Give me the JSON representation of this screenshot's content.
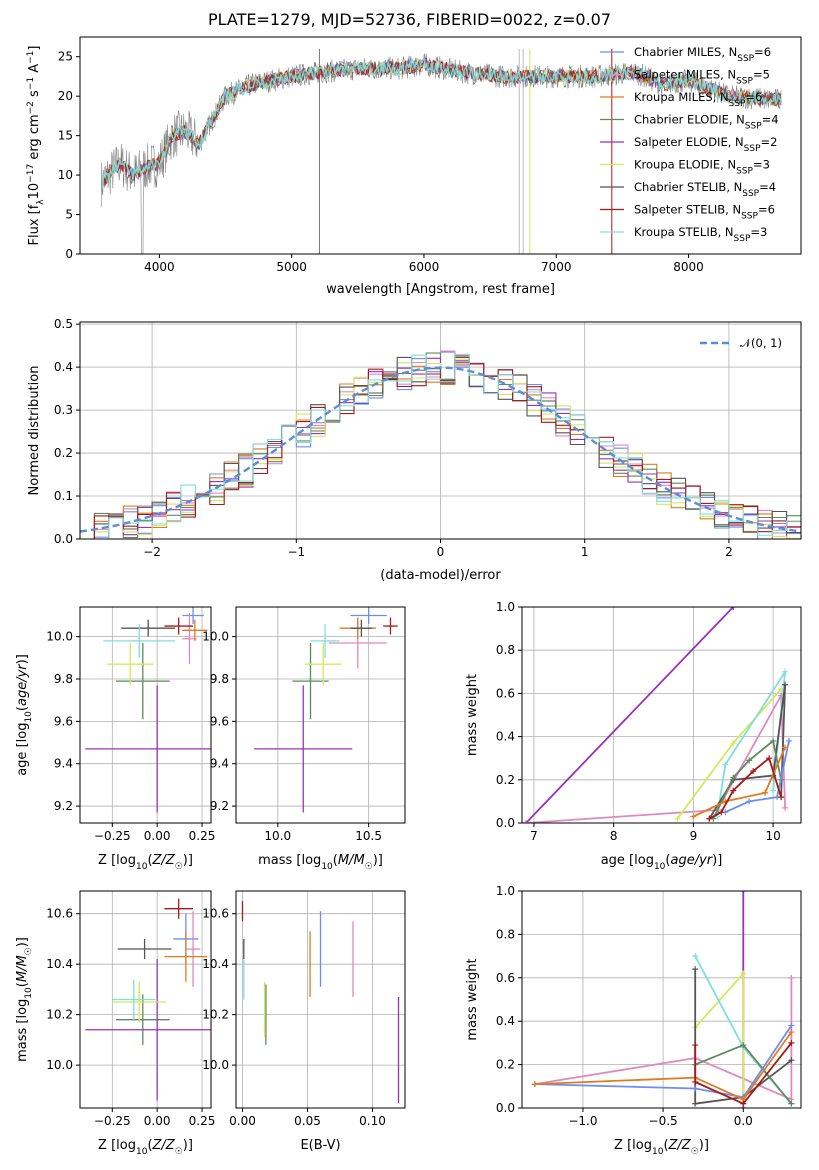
{
  "title": "PLATE=1279, MJD=52736, FIBERID=0022, z=0.07",
  "colors": {
    "chabrier_miles": "#6b8ef0",
    "salpeter_miles": "#e089c0",
    "kroupa_miles": "#e07b20",
    "chabrier_elodie": "#5f8a5f",
    "salpeter_elodie": "#9b30b8",
    "kroupa_elodie": "#d4e85a",
    "chabrier_stelib": "#555555",
    "salpeter_stelib": "#aa1818",
    "kroupa_stelib": "#80dede",
    "gauss": "#5b8ed6",
    "data": "#808080"
  },
  "chart_data": [
    {
      "id": "spectrum",
      "type": "line",
      "xlabel": "wavelength [Angstrom, rest frame]",
      "ylabel": "Flux [fλ10⁻¹⁷ erg cm⁻² s⁻¹ A⁻¹]",
      "xlim": [
        3400,
        8850
      ],
      "ylim": [
        0,
        27.5
      ],
      "xticks": [
        4000,
        5000,
        6000,
        7000,
        8000
      ],
      "yticks": [
        0,
        5,
        10,
        15,
        20,
        25
      ],
      "legend_position": "top-right",
      "legend": [
        "Chabrier MILES, N_SSP=6",
        "Salpeter MILES, N_SSP=5",
        "Kroupa MILES, N_SSP=6",
        "Chabrier ELODIE, N_SSP=4",
        "Salpeter ELODIE, N_SSP=2",
        "Kroupa ELODIE, N_SSP=3",
        "Chabrier STELIB, N_SSP=4",
        "Salpeter STELIB, N_SSP=6",
        "Kroupa STELIB, N_SSP=3"
      ],
      "series_keys": [
        "chabrier_miles",
        "salpeter_miles",
        "kroupa_miles",
        "chabrier_elodie",
        "salpeter_elodie",
        "kroupa_elodie",
        "chabrier_stelib",
        "salpeter_stelib",
        "kroupa_stelib"
      ],
      "continuum": {
        "x": [
          3560,
          3700,
          3800,
          3900,
          4000,
          4100,
          4200,
          4300,
          4400,
          4500,
          4700,
          5000,
          5200,
          5500,
          5800,
          6000,
          6300,
          6600,
          7000,
          7300,
          7600,
          7800,
          8000,
          8300,
          8700
        ],
        "y": [
          9,
          11.5,
          10,
          11,
          11.5,
          15,
          15.5,
          14,
          17,
          20,
          21.5,
          22.5,
          23,
          23.5,
          23.5,
          24,
          23,
          22.5,
          22.5,
          22.5,
          23,
          21.5,
          22,
          20,
          19.5
        ]
      }
    },
    {
      "id": "residuals",
      "type": "histogram",
      "xlabel": "(data-model)/error",
      "ylabel": "Normed distribution",
      "xlim": [
        -2.5,
        2.5
      ],
      "ylim": [
        0,
        0.505
      ],
      "xticks": [
        -2,
        -1,
        0,
        1,
        2
      ],
      "yticks": [
        0,
        0.1,
        0.2,
        0.3,
        0.4,
        0.5
      ],
      "grid": true,
      "legend_position": "top-right",
      "legend": [
        "𝒩(0, 1)"
      ],
      "bin_width": 0.1
    },
    {
      "id": "age_vs_Z",
      "type": "errorbar",
      "xlabel": "Z [log10(Z/Z☉)]",
      "ylabel": "age [log10(age/yr)]",
      "xlim": [
        -0.43,
        0.3
      ],
      "ylim": [
        9.12,
        10.14
      ],
      "xticks": [
        -0.25,
        0.0,
        0.25
      ],
      "yticks": [
        9.2,
        9.4,
        9.6,
        9.8,
        10.0
      ],
      "grid": true,
      "points": [
        {
          "s": "chabrier_miles",
          "x": 0.2,
          "y": 10.1,
          "xe": 0.06,
          "ye": 0.04
        },
        {
          "s": "salpeter_miles",
          "x": 0.18,
          "y": 9.99,
          "xe": 0.04,
          "ye": 0.12
        },
        {
          "s": "kroupa_miles",
          "x": 0.21,
          "y": 10.03,
          "xe": 0.07,
          "ye": 0.05
        },
        {
          "s": "chabrier_elodie",
          "x": -0.08,
          "y": 9.79,
          "xe": 0.15,
          "ye": 0.18
        },
        {
          "s": "salpeter_elodie",
          "x": 0.0,
          "y": 9.47,
          "xe": 0.4,
          "ye": 0.3
        },
        {
          "s": "kroupa_elodie",
          "x": -0.15,
          "y": 9.87,
          "xe": 0.13,
          "ye": 0.1
        },
        {
          "s": "chabrier_stelib",
          "x": -0.05,
          "y": 10.04,
          "xe": 0.15,
          "ye": 0.04
        },
        {
          "s": "salpeter_stelib",
          "x": 0.12,
          "y": 10.05,
          "xe": 0.08,
          "ye": 0.04
        },
        {
          "s": "kroupa_stelib",
          "x": -0.1,
          "y": 9.98,
          "xe": 0.2,
          "ye": 0.08
        }
      ]
    },
    {
      "id": "age_vs_mass",
      "type": "errorbar",
      "xlabel": "mass [log10(M/M☉)]",
      "ylabel": "",
      "xlim": [
        9.77,
        10.7
      ],
      "ylim": [
        9.12,
        10.14
      ],
      "xticks": [
        10.0,
        10.5
      ],
      "yticks": [
        9.2,
        9.4,
        9.6,
        9.8,
        10.0
      ],
      "grid": true,
      "points": [
        {
          "s": "chabrier_miles",
          "x": 10.5,
          "y": 10.1,
          "xe": 0.1,
          "ye": 0.04
        },
        {
          "s": "salpeter_miles",
          "x": 10.44,
          "y": 9.97,
          "xe": 0.16,
          "ye": 0.12
        },
        {
          "s": "kroupa_miles",
          "x": 10.44,
          "y": 10.04,
          "xe": 0.1,
          "ye": 0.05
        },
        {
          "s": "chabrier_elodie",
          "x": 10.18,
          "y": 9.79,
          "xe": 0.1,
          "ye": 0.18
        },
        {
          "s": "salpeter_elodie",
          "x": 10.14,
          "y": 9.47,
          "xe": 0.27,
          "ye": 0.3
        },
        {
          "s": "kroupa_elodie",
          "x": 10.25,
          "y": 9.87,
          "xe": 0.1,
          "ye": 0.1
        },
        {
          "s": "chabrier_stelib",
          "x": 10.46,
          "y": 10.04,
          "xe": 0.06,
          "ye": 0.04
        },
        {
          "s": "salpeter_stelib",
          "x": 10.62,
          "y": 10.05,
          "xe": 0.04,
          "ye": 0.04
        },
        {
          "s": "kroupa_stelib",
          "x": 10.26,
          "y": 9.98,
          "xe": 0.08,
          "ye": 0.08
        }
      ]
    },
    {
      "id": "mass_weight_vs_age",
      "type": "line",
      "xlabel": "age [log10(age/yr)]",
      "ylabel": "mass weight",
      "xlim": [
        6.85,
        10.35
      ],
      "ylim": [
        0,
        1.0
      ],
      "xticks": [
        7,
        8,
        9,
        10
      ],
      "yticks": [
        0,
        0.2,
        0.4,
        0.6,
        0.8,
        1.0
      ],
      "grid": true,
      "series": [
        {
          "s": "salpeter_elodie",
          "x": [
            6.9,
            9.5
          ],
          "y": [
            0.0,
            1.0
          ]
        },
        {
          "s": "salpeter_miles",
          "x": [
            6.9,
            9.3,
            10.1,
            10.15
          ],
          "y": [
            0.0,
            0.06,
            0.59,
            0.07
          ]
        },
        {
          "s": "kroupa_elodie",
          "x": [
            8.8,
            9.5,
            10.1
          ],
          "y": [
            0.02,
            0.37,
            0.62
          ]
        },
        {
          "s": "kroupa_stelib",
          "x": [
            9.3,
            9.4,
            10.15,
            10.0
          ],
          "y": [
            0.03,
            0.27,
            0.7,
            0.15
          ]
        },
        {
          "s": "chabrier_stelib",
          "x": [
            9.2,
            9.5,
            10.0,
            10.15,
            10.1
          ],
          "y": [
            0.02,
            0.2,
            0.22,
            0.64,
            0.12
          ]
        },
        {
          "s": "chabrier_elodie",
          "x": [
            9.25,
            9.5,
            9.7,
            10.0,
            10.1
          ],
          "y": [
            0.02,
            0.21,
            0.29,
            0.38,
            0.2
          ]
        },
        {
          "s": "chabrier_miles",
          "x": [
            9.4,
            9.7,
            10.05,
            10.2
          ],
          "y": [
            0.05,
            0.1,
            0.12,
            0.38
          ]
        },
        {
          "s": "kroupa_miles",
          "x": [
            9.0,
            9.4,
            9.9,
            10.15
          ],
          "y": [
            0.03,
            0.1,
            0.14,
            0.35
          ]
        },
        {
          "s": "salpeter_stelib",
          "x": [
            9.2,
            9.35,
            9.5,
            9.75,
            9.95,
            10.1
          ],
          "y": [
            0.02,
            0.05,
            0.15,
            0.24,
            0.3,
            0.12
          ]
        }
      ]
    },
    {
      "id": "mass_vs_Z",
      "type": "errorbar",
      "xlabel": "Z [log10(Z/Z☉)]",
      "ylabel": "mass [log10(M/M☉)]",
      "xlim": [
        -0.43,
        0.3
      ],
      "ylim": [
        9.83,
        10.69
      ],
      "xticks": [
        -0.25,
        0.0,
        0.25
      ],
      "yticks": [
        10.0,
        10.2,
        10.4,
        10.6
      ],
      "grid": true,
      "points": [
        {
          "s": "chabrier_miles",
          "x": 0.16,
          "y": 10.5,
          "xe": 0.07,
          "ye": 0.1
        },
        {
          "s": "salpeter_miles",
          "x": 0.2,
          "y": 10.46,
          "xe": 0.04,
          "ye": 0.15
        },
        {
          "s": "kroupa_miles",
          "x": 0.16,
          "y": 10.43,
          "xe": 0.12,
          "ye": 0.1
        },
        {
          "s": "chabrier_elodie",
          "x": -0.08,
          "y": 10.18,
          "xe": 0.15,
          "ye": 0.1
        },
        {
          "s": "salpeter_elodie",
          "x": 0.0,
          "y": 10.14,
          "xe": 0.4,
          "ye": 0.28
        },
        {
          "s": "kroupa_elodie",
          "x": -0.1,
          "y": 10.25,
          "xe": 0.15,
          "ye": 0.08
        },
        {
          "s": "chabrier_stelib",
          "x": -0.07,
          "y": 10.46,
          "xe": 0.15,
          "ye": 0.04
        },
        {
          "s": "salpeter_stelib",
          "x": 0.12,
          "y": 10.62,
          "xe": 0.08,
          "ye": 0.04
        },
        {
          "s": "kroupa_stelib",
          "x": -0.13,
          "y": 10.26,
          "xe": 0.12,
          "ye": 0.08
        }
      ]
    },
    {
      "id": "mass_vs_ebv",
      "type": "errorbar",
      "xlabel": "E(B-V)",
      "ylabel": "",
      "xlim": [
        -0.005,
        0.125
      ],
      "ylim": [
        9.83,
        10.69
      ],
      "xticks": [
        0.0,
        0.05,
        0.1
      ],
      "yticks": [
        10.0,
        10.2,
        10.4,
        10.6
      ],
      "grid": true,
      "points": [
        {
          "s": "chabrier_miles",
          "x": 0.06,
          "y": 10.46,
          "xe": 0,
          "ye": 0.15
        },
        {
          "s": "salpeter_miles",
          "x": 0.085,
          "y": 10.42,
          "xe": 0,
          "ye": 0.15
        },
        {
          "s": "kroupa_miles",
          "x": 0.052,
          "y": 10.4,
          "xe": 0,
          "ye": 0.13
        },
        {
          "s": "chabrier_elodie",
          "x": 0.018,
          "y": 10.2,
          "xe": 0,
          "ye": 0.12
        },
        {
          "s": "salpeter_elodie",
          "x": 0.12,
          "y": 10.06,
          "xe": 0,
          "ye": 0.21
        },
        {
          "s": "kroupa_elodie",
          "x": 0.017,
          "y": 10.22,
          "xe": 0,
          "ye": 0.11
        },
        {
          "s": "chabrier_stelib",
          "x": 0.001,
          "y": 10.46,
          "xe": 0,
          "ye": 0.04
        },
        {
          "s": "salpeter_stelib",
          "x": 0.0,
          "y": 10.61,
          "xe": 0,
          "ye": 0.04
        },
        {
          "s": "kroupa_stelib",
          "x": 0.001,
          "y": 10.34,
          "xe": 0,
          "ye": 0.08
        }
      ]
    },
    {
      "id": "mass_weight_vs_Z",
      "type": "line",
      "xlabel": "Z [log10(Z/Z☉)]",
      "ylabel": "mass weight",
      "xlim": [
        -1.38,
        0.36
      ],
      "ylim": [
        0,
        1.0
      ],
      "xticks": [
        -1.0,
        -0.5,
        0.0
      ],
      "yticks": [
        0,
        0.2,
        0.4,
        0.6,
        0.8,
        1.0
      ],
      "grid": true,
      "series": [
        {
          "s": "salpeter_elodie",
          "x": [
            0.0,
            0.0
          ],
          "y": [
            0.0,
            1.0
          ]
        },
        {
          "s": "salpeter_miles",
          "x": [
            -1.3,
            -0.3,
            0.3,
            0.3
          ],
          "y": [
            0.11,
            0.23,
            0.04,
            0.6
          ]
        },
        {
          "s": "kroupa_elodie",
          "x": [
            -0.3,
            0.0,
            0.0
          ],
          "y": [
            0.37,
            0.62,
            0.02
          ]
        },
        {
          "s": "kroupa_stelib",
          "x": [
            -0.3,
            0.0,
            0.3
          ],
          "y": [
            0.7,
            0.28,
            0.02
          ]
        },
        {
          "s": "chabrier_stelib",
          "x": [
            -0.3,
            -0.3,
            0.0,
            0.3
          ],
          "y": [
            0.64,
            0.02,
            0.05,
            0.22
          ]
        },
        {
          "s": "chabrier_elodie",
          "x": [
            -0.3,
            0.0,
            0.3
          ],
          "y": [
            0.2,
            0.29,
            0.02
          ]
        },
        {
          "s": "chabrier_miles",
          "x": [
            -1.3,
            -0.3,
            0.0,
            0.3
          ],
          "y": [
            0.11,
            0.09,
            0.05,
            0.38
          ]
        },
        {
          "s": "kroupa_miles",
          "x": [
            -1.3,
            -0.3,
            0.0,
            0.3
          ],
          "y": [
            0.11,
            0.14,
            0.04,
            0.35
          ]
        },
        {
          "s": "salpeter_stelib",
          "x": [
            -0.3,
            -0.3,
            0.0,
            0.3
          ],
          "y": [
            0.29,
            0.12,
            0.02,
            0.3
          ]
        }
      ]
    }
  ]
}
